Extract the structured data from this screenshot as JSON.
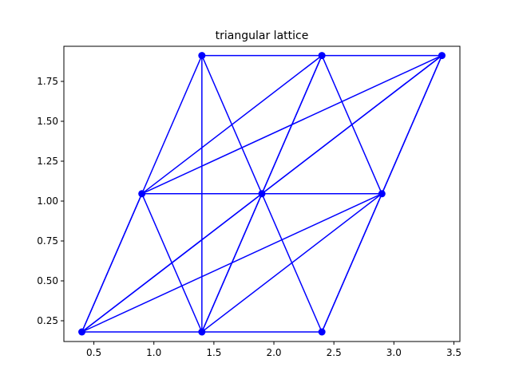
{
  "chart_data": {
    "type": "line",
    "title": "triangular lattice",
    "xlabel": "",
    "ylabel": "",
    "xlim": [
      0.25,
      3.55
    ],
    "ylim": [
      0.12,
      1.97
    ],
    "xticks": [
      0.5,
      1.0,
      1.5,
      2.0,
      2.5,
      3.0,
      3.5
    ],
    "xtick_labels": [
      "0.5",
      "1.0",
      "1.5",
      "2.0",
      "2.5",
      "3.0",
      "3.5"
    ],
    "yticks": [
      0.25,
      0.5,
      0.75,
      1.0,
      1.25,
      1.5,
      1.75
    ],
    "ytick_labels": [
      "0.25",
      "0.50",
      "0.75",
      "1.00",
      "1.25",
      "1.50",
      "1.75"
    ],
    "grid": false,
    "color": "#0000ff",
    "marker": "circle",
    "points": [
      {
        "x": 0.4,
        "y": 0.18
      },
      {
        "x": 1.4,
        "y": 0.18
      },
      {
        "x": 2.4,
        "y": 0.18
      },
      {
        "x": 0.9,
        "y": 1.046
      },
      {
        "x": 1.9,
        "y": 1.046
      },
      {
        "x": 2.9,
        "y": 1.046
      },
      {
        "x": 1.4,
        "y": 1.912
      },
      {
        "x": 2.4,
        "y": 1.912
      },
      {
        "x": 3.4,
        "y": 1.912
      }
    ],
    "edges": [
      [
        0,
        1
      ],
      [
        1,
        2
      ],
      [
        3,
        4
      ],
      [
        4,
        5
      ],
      [
        6,
        7
      ],
      [
        7,
        8
      ],
      [
        0,
        3
      ],
      [
        3,
        6
      ],
      [
        1,
        4
      ],
      [
        4,
        7
      ],
      [
        2,
        5
      ],
      [
        5,
        8
      ],
      [
        1,
        3
      ],
      [
        3,
        0
      ],
      [
        2,
        4
      ],
      [
        4,
        6
      ],
      [
        5,
        7
      ],
      [
        0,
        4
      ],
      [
        1,
        5
      ],
      [
        3,
        7
      ],
      [
        4,
        8
      ],
      [
        0,
        5
      ],
      [
        3,
        8
      ],
      [
        1,
        7
      ],
      [
        0,
        8
      ],
      [
        2,
        8
      ],
      [
        1,
        6
      ]
    ]
  }
}
